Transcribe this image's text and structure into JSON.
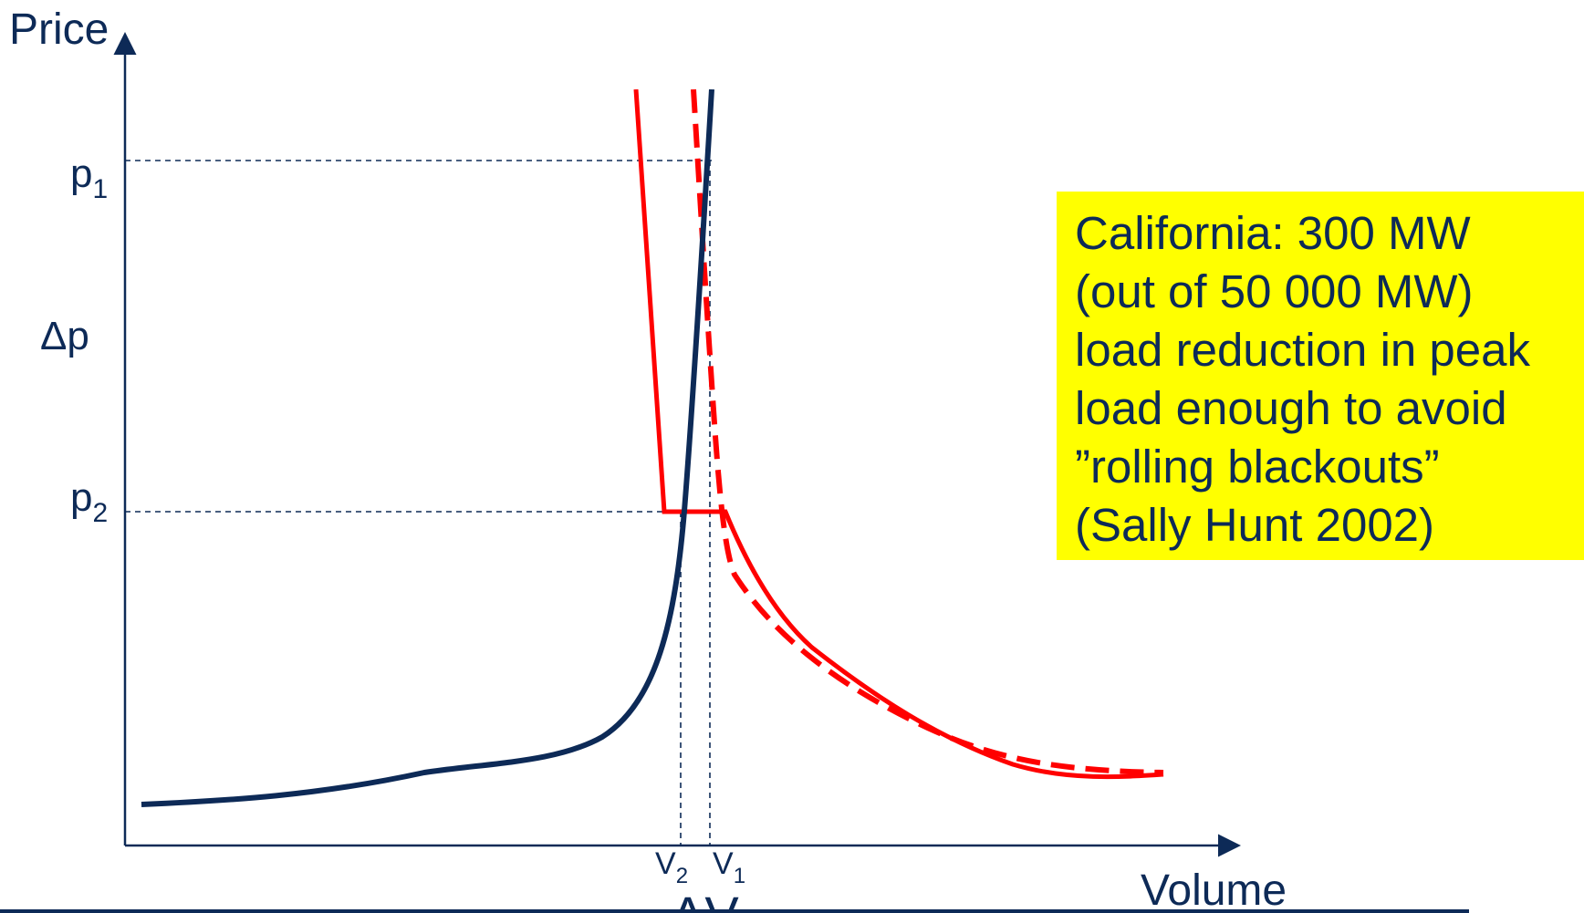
{
  "axes": {
    "y_label": "Price",
    "x_label": "Volume"
  },
  "price_labels": {
    "p1": "p",
    "p1_sub": "1",
    "delta_p": "Δp",
    "p2": "p",
    "p2_sub": "2"
  },
  "volume_labels": {
    "v2": "V",
    "v2_sub": "2",
    "v1": "V",
    "v1_sub": "1",
    "delta_v": "ΔV"
  },
  "note": {
    "lines": [
      "California: 300 MW",
      "(out of 50 000 MW)",
      "load reduction in peak",
      "load enough to avoid",
      "”rolling blackouts”",
      "(Sally Hunt 2002)"
    ]
  },
  "colors": {
    "supply_curve": "#0d2a57",
    "demand_curve": "#ff0000",
    "note_background": "#ffff00",
    "text": "#0d2a57"
  }
}
